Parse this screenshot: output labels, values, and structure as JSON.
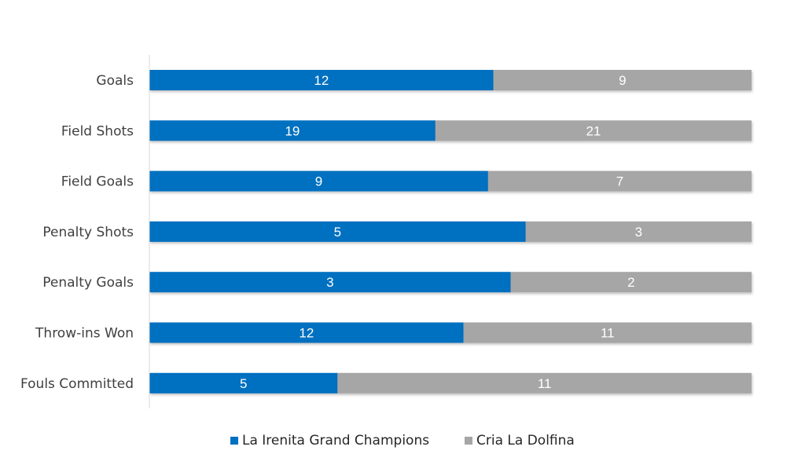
{
  "chart_data": {
    "type": "bar",
    "orientation": "horizontal",
    "stacked": "percent",
    "categories": [
      "Goals",
      "Field Shots",
      "Field Goals",
      "Penalty Shots",
      "Penalty Goals",
      "Throw-ins Won",
      "Fouls Committed"
    ],
    "series": [
      {
        "name": "La Irenita Grand Champions",
        "color": "#0070C0",
        "values": [
          12,
          19,
          9,
          5,
          3,
          12,
          5
        ]
      },
      {
        "name": "Cria La Dolfina",
        "color": "#A6A6A6",
        "values": [
          9,
          21,
          7,
          3,
          2,
          11,
          11
        ]
      }
    ],
    "title": "",
    "xlabel": "",
    "ylabel": "",
    "grid": false,
    "legend_position": "bottom"
  }
}
